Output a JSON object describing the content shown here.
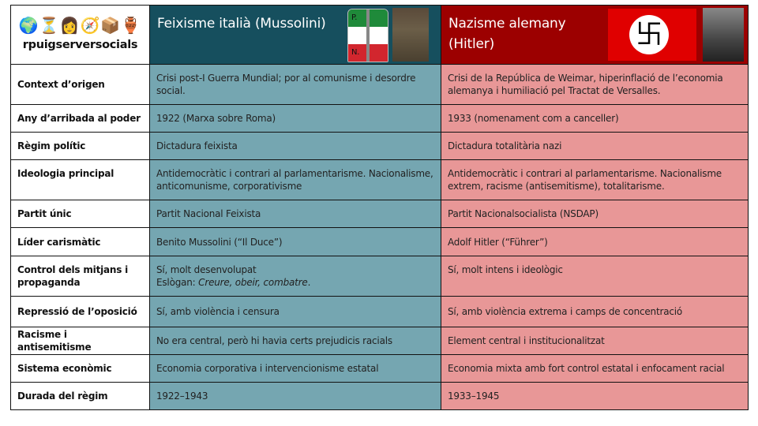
{
  "logo": {
    "text": "rpuigserversocials",
    "icons": "🌍⏳👩🧭📦🏺"
  },
  "columns": {
    "italy": {
      "title": "Feixisme italià (Mussolini)",
      "flag_letters": [
        "P.",
        "N.",
        "F."
      ]
    },
    "germany": {
      "title_line1": "Nazisme alemany",
      "title_line2": "(Hitler)",
      "flag_symbol": "卐"
    }
  },
  "colors": {
    "italy_header": "#164f5e",
    "italy_body": "#75a6b1",
    "germany_header": "#9c0000",
    "germany_body": "#e89797"
  },
  "rows": [
    {
      "label": "Context d’origen",
      "italy": "Crisi post-I Guerra Mundial; por al comunisme i desordre social.",
      "germany": "Crisi de la República de Weimar, hiperinflació de l’economia alemanya i humiliació pel Tractat de Versalles."
    },
    {
      "label": "Any d’arribada al poder",
      "italy": "1922 (Marxa sobre Roma)",
      "germany": "1933 (nomenament com a canceller)"
    },
    {
      "label": "Règim polític",
      "italy": "Dictadura feixista",
      "germany": "Dictadura totalitària nazi"
    },
    {
      "label": "Ideologia principal",
      "italy": "Antidemocràtic i contrari al parlamentarisme. Nacionalisme, anticomunisme, corporativisme",
      "germany": "Antidemocràtic i contrari al parlamentarisme. Nacionalisme extrem, racisme (antisemitisme), totalitarisme."
    },
    {
      "label": "Partit únic",
      "italy": "Partit Nacional Feixista",
      "germany": "Partit Nacionalsocialista (NSDAP)"
    },
    {
      "label": "Líder carismàtic",
      "italy": "Benito Mussolini (“Il Duce”)",
      "germany": "Adolf Hitler (“Führer”)"
    },
    {
      "label": "Control dels mitjans i propaganda",
      "italy": "Sí, molt desenvolupat",
      "italy_slogan_prefix": "Eslògan: ",
      "italy_slogan": "Creure, obeir, combatre",
      "italy_slogan_suffix": ".",
      "germany": "Sí, molt intens i ideològic"
    },
    {
      "label": "Repressió de l’oposició",
      "italy": "Sí, amb violència i censura",
      "germany": "Sí, amb violència extrema i camps de concentració"
    },
    {
      "label": "Racisme i antisemitisme",
      "italy": "No era central, però hi havia certs prejudicis racials",
      "germany": "Element central i institucionalitzat"
    },
    {
      "label": "Sistema econòmic",
      "italy": "Economia corporativa i intervencionisme estatal",
      "germany": "Economia mixta amb fort control estatal i enfocament racial"
    },
    {
      "label": "Durada del règim",
      "italy": "1922–1943",
      "germany": "1933–1945"
    }
  ]
}
